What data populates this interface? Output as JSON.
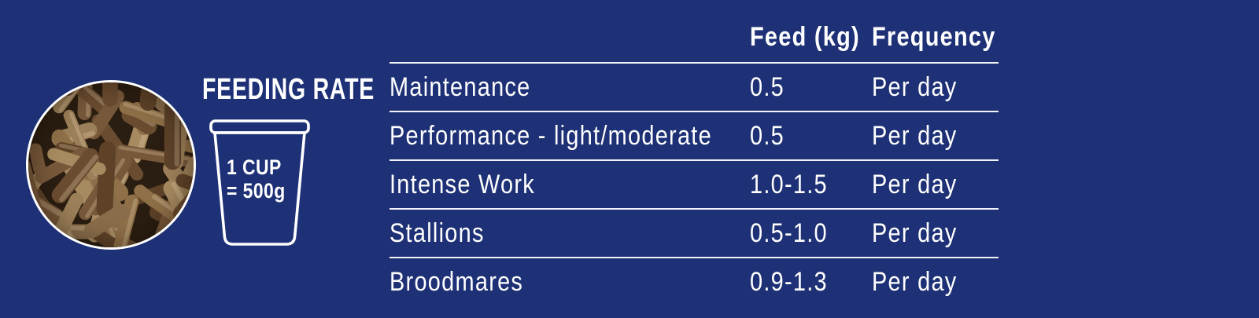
{
  "theme": {
    "background_color": "#1e3176",
    "text_color": "#ffffff",
    "rule_color": "#f2f3f8"
  },
  "left_panel": {
    "title": "FEEDING RATE",
    "photo": {
      "name": "feed-pellets-photo",
      "background": "#2a1d11",
      "palette": [
        "#8a6e4b",
        "#9b7f58",
        "#77583a",
        "#6a4c30",
        "#a68a60",
        "#5d4228",
        "#8f7048"
      ]
    },
    "cup": {
      "icon": "measuring-cup-icon",
      "line1": "1 CUP",
      "line2": "= 500g"
    }
  },
  "chart_data": {
    "type": "table",
    "title": "FEEDING RATE",
    "columns": [
      "",
      "Feed (kg)",
      "Frequency"
    ],
    "rows": [
      [
        "Maintenance",
        "0.5",
        "Per day"
      ],
      [
        "Performance - light/moderate",
        "0.5",
        "Per day"
      ],
      [
        "Intense Work",
        "1.0-1.5",
        "Per day"
      ],
      [
        "Stallions",
        "0.5-1.0",
        "Per day"
      ],
      [
        "Broodmares",
        "0.9-1.3",
        "Per day"
      ]
    ]
  }
}
